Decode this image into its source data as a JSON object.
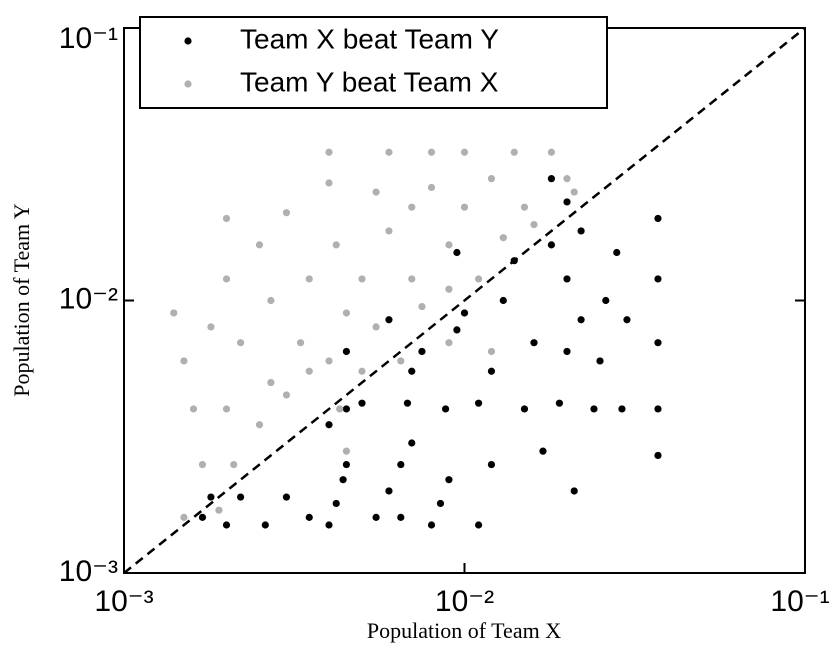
{
  "chart_data": {
    "type": "scatter",
    "xlabel": "Population of Team X",
    "ylabel": "Population of Team Y",
    "xscale": "log",
    "yscale": "log",
    "xlim": [
      0.001,
      0.1
    ],
    "ylim": [
      0.001,
      0.1
    ],
    "xticks": [
      {
        "value": 0.001,
        "label": "10⁻³"
      },
      {
        "value": 0.01,
        "label": "10⁻²"
      },
      {
        "value": 0.1,
        "label": "10⁻¹"
      }
    ],
    "yticks": [
      {
        "value": 0.001,
        "label": "10⁻³"
      },
      {
        "value": 0.01,
        "label": "10⁻²"
      },
      {
        "value": 0.1,
        "label": "10⁻¹"
      }
    ],
    "legend": "upper left",
    "series": [
      {
        "name": "Team X beat Team Y",
        "color": "#000000",
        "x": [
          0.0017,
          0.0018,
          0.002,
          0.0022,
          0.0026,
          0.003,
          0.0035,
          0.004,
          0.0042,
          0.0044,
          0.0045,
          0.004,
          0.0045,
          0.005,
          0.0055,
          0.006,
          0.0065,
          0.007,
          0.0068,
          0.007,
          0.0075,
          0.008,
          0.0085,
          0.009,
          0.0088,
          0.0095,
          0.01,
          0.011,
          0.012,
          0.012,
          0.013,
          0.014,
          0.015,
          0.016,
          0.017,
          0.018,
          0.019,
          0.02,
          0.02,
          0.021,
          0.022,
          0.022,
          0.024,
          0.025,
          0.026,
          0.028,
          0.029,
          0.03,
          0.037,
          0.037,
          0.037,
          0.037,
          0.037,
          0.018,
          0.02,
          0.0065,
          0.0045,
          0.006,
          0.0095,
          0.011
        ],
        "values": [
          0.0016,
          0.0019,
          0.0015,
          0.0019,
          0.0015,
          0.0019,
          0.0016,
          0.0015,
          0.0018,
          0.0022,
          0.0025,
          0.0035,
          0.004,
          0.0042,
          0.0016,
          0.002,
          0.0025,
          0.003,
          0.0042,
          0.0055,
          0.0065,
          0.0015,
          0.0018,
          0.0022,
          0.004,
          0.0078,
          0.009,
          0.0042,
          0.0025,
          0.0055,
          0.01,
          0.014,
          0.004,
          0.007,
          0.0028,
          0.016,
          0.0042,
          0.0065,
          0.012,
          0.002,
          0.0085,
          0.018,
          0.004,
          0.006,
          0.01,
          0.015,
          0.004,
          0.0085,
          0.0027,
          0.004,
          0.007,
          0.012,
          0.02,
          0.028,
          0.023,
          0.0016,
          0.0065,
          0.0085,
          0.015,
          0.0015
        ]
      },
      {
        "name": "Team Y beat Team X",
        "color": "#b0b0b0",
        "x": [
          0.0014,
          0.0015,
          0.0016,
          0.0017,
          0.0018,
          0.002,
          0.002,
          0.002,
          0.0021,
          0.0022,
          0.0025,
          0.0027,
          0.0027,
          0.003,
          0.003,
          0.0033,
          0.0035,
          0.004,
          0.004,
          0.004,
          0.0042,
          0.0043,
          0.0045,
          0.005,
          0.0055,
          0.006,
          0.006,
          0.0065,
          0.007,
          0.007,
          0.008,
          0.008,
          0.009,
          0.009,
          0.01,
          0.01,
          0.011,
          0.012,
          0.013,
          0.014,
          0.015,
          0.016,
          0.018,
          0.02,
          0.021,
          0.0015,
          0.0019,
          0.0025,
          0.0035,
          0.005,
          0.0045,
          0.0055,
          0.0075,
          0.009,
          0.012
        ],
        "values": [
          0.009,
          0.006,
          0.004,
          0.0025,
          0.008,
          0.02,
          0.012,
          0.004,
          0.0025,
          0.007,
          0.016,
          0.01,
          0.005,
          0.021,
          0.0045,
          0.007,
          0.012,
          0.027,
          0.035,
          0.006,
          0.016,
          0.004,
          0.009,
          0.012,
          0.025,
          0.035,
          0.018,
          0.006,
          0.022,
          0.012,
          0.035,
          0.026,
          0.016,
          0.007,
          0.035,
          0.022,
          0.012,
          0.028,
          0.017,
          0.035,
          0.022,
          0.019,
          0.035,
          0.028,
          0.025,
          0.0016,
          0.0017,
          0.0035,
          0.0055,
          0.0055,
          0.0028,
          0.008,
          0.0095,
          0.011,
          0.0065
        ]
      }
    ]
  }
}
